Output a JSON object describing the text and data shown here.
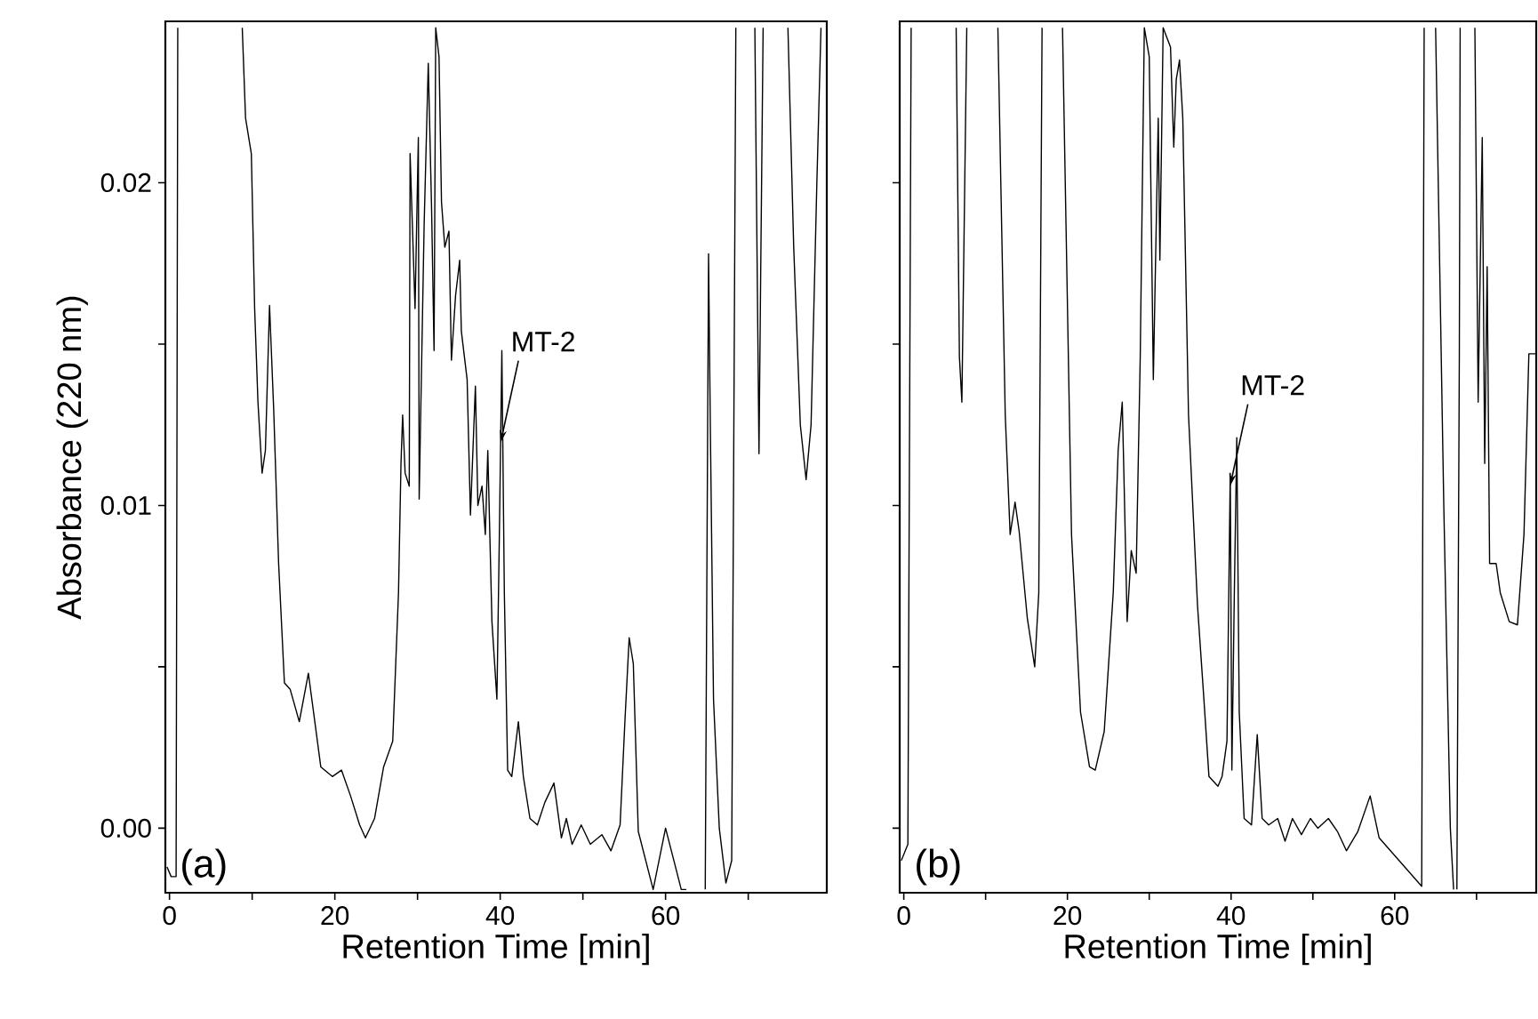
{
  "chart_data": [
    {
      "type": "line",
      "xlabel": "Retention Time [min]",
      "ylabel": "Absorbance (220 nm)",
      "xlim": [
        -0.5,
        79.5
      ],
      "ylim": [
        -0.002,
        0.025
      ],
      "xticks": [
        0,
        {
          "value": 10,
          "label": null
        },
        20,
        {
          "value": 30,
          "label": null
        },
        40,
        {
          "value": 50,
          "label": null
        },
        60,
        {
          "value": 70,
          "label": null
        }
      ],
      "yticks": [
        {
          "value": 0,
          "label": "0.00"
        },
        {
          "value": 0.005,
          "label": null
        },
        {
          "value": 0.01,
          "label": "0.01"
        },
        {
          "value": 0.015,
          "label": null
        },
        {
          "value": 0.02,
          "label": "0.02"
        }
      ],
      "marker": "none",
      "line_style": "solid",
      "annotations": [
        {
          "text": "MT-2",
          "x": 40.05,
          "y": 0.01195
        },
        "(a)"
      ],
      "series": [
        {
          "color": "#000000",
          "x": [
            -0.3,
            0.2,
            0.8,
            1.0,
            4.9,
            8.8,
            9.2,
            9.9,
            10.3,
            10.7,
            11.2,
            11.6,
            12.1,
            12.6,
            13.2,
            13.9,
            14.6,
            15.7,
            16.8,
            18.3,
            19.7,
            20.8,
            21.9,
            23.0,
            23.7,
            24.8,
            25.9,
            27.0,
            27.7,
            28.0,
            28.2,
            28.5,
            29.0,
            29.1,
            29.7,
            30.1,
            30.2,
            30.8,
            31.3,
            31.7,
            32.0,
            32.2,
            32.6,
            32.9,
            33.3,
            33.8,
            34.1,
            34.6,
            35.1,
            35.3,
            36.0,
            36.4,
            37.0,
            37.3,
            37.8,
            38.2,
            38.5,
            39.0,
            39.6,
            39.9,
            40.2,
            40.5,
            40.9,
            41.4,
            42.2,
            42.8,
            43.6,
            44.5,
            45.4,
            46.5,
            47.4,
            48.0,
            48.7,
            49.8,
            50.9,
            52.3,
            53.4,
            54.5,
            55.1,
            55.6,
            56.1,
            56.7,
            58.5,
            60.0,
            61.9,
            62.5,
            63.6,
            64.8,
            65.2,
            65.4,
            65.8,
            66.5,
            67.3,
            68.0,
            68.5,
            69.6,
            70.8,
            71.3,
            71.5,
            71.8,
            73.3,
            74.8,
            75.5,
            76.3,
            77.0,
            77.6,
            78.3,
            78.8
          ],
          "values": [
            -0.0012,
            -0.0015,
            -0.0015,
            0.0248,
            null,
            0.0248,
            0.022,
            0.0209,
            0.0161,
            0.0132,
            0.011,
            0.0117,
            0.0162,
            0.013,
            0.0082,
            0.0045,
            0.0043,
            0.0033,
            0.0048,
            0.0019,
            0.0016,
            0.0018,
            0.001,
            0.0001,
            -0.0003,
            0.0003,
            0.0019,
            0.0027,
            0.0073,
            0.0113,
            0.0128,
            0.011,
            0.0106,
            0.0209,
            0.0161,
            0.0214,
            0.0102,
            0.0187,
            0.0237,
            0.0192,
            0.0148,
            0.0248,
            0.0239,
            0.0194,
            0.018,
            0.0185,
            0.0145,
            0.0165,
            0.0176,
            0.0154,
            0.0139,
            0.0097,
            0.0137,
            0.01,
            0.0106,
            0.0091,
            0.0117,
            0.0064,
            0.004,
            0.0091,
            0.0148,
            0.0073,
            0.0018,
            0.0016,
            0.0033,
            0.0016,
            0.0003,
            0.0001,
            0.0008,
            0.0014,
            -0.0003,
            0.0003,
            -0.0005,
            0.0001,
            -0.0005,
            -0.0002,
            -0.0007,
            0.0001,
            0.0034,
            0.0059,
            0.0051,
            -0.0001,
            -0.0019,
            0.0,
            -0.0019,
            -0.0019,
            null,
            -0.0019,
            0.0178,
            0.0128,
            0.004,
            0.0,
            -0.0017,
            -0.001,
            0.0248,
            null,
            0.0248,
            0.0116,
            0.017,
            0.0248,
            null,
            0.0248,
            0.018,
            0.0125,
            0.0108,
            0.0125,
            0.02,
            0.0248
          ]
        }
      ]
    },
    {
      "type": "line",
      "xlabel": "Retention Time [min]",
      "xlim": [
        -0.5,
        77.3
      ],
      "ylim": [
        -0.002,
        0.025
      ],
      "xticks": [
        0,
        {
          "value": 10,
          "label": null
        },
        20,
        {
          "value": 30,
          "label": null
        },
        40,
        {
          "value": 50,
          "label": null
        },
        60,
        {
          "value": 70,
          "label": null
        }
      ],
      "yticks": [
        {
          "value": 0,
          "label": null
        },
        {
          "value": 0.005,
          "label": null
        },
        {
          "value": 0.01,
          "label": null
        },
        {
          "value": 0.015,
          "label": null
        },
        {
          "value": 0.02,
          "label": null
        }
      ],
      "tick_labels": "x",
      "marker": "none",
      "line_style": "solid",
      "annotations": [
        {
          "text": "MT-2",
          "x": 39.88,
          "y": 0.0106
        },
        "(b)"
      ],
      "series": [
        {
          "color": "#000000",
          "x": [
            -0.3,
            0.5,
            0.9,
            3.6,
            6.4,
            6.8,
            7.1,
            7.7,
            9.6,
            11.5,
            12.4,
            13.0,
            13.6,
            14.1,
            15.1,
            16.0,
            16.5,
            16.9,
            18.1,
            19.4,
            20.5,
            21.6,
            22.7,
            23.4,
            24.5,
            25.6,
            26.2,
            26.7,
            26.9,
            27.3,
            27.8,
            28.4,
            28.9,
            29.4,
            30.0,
            30.5,
            31.1,
            31.3,
            31.7,
            32.6,
            33.0,
            33.3,
            33.7,
            34.1,
            34.8,
            35.9,
            36.6,
            37.3,
            38.4,
            38.9,
            39.5,
            39.9,
            40.1,
            40.4,
            40.7,
            41.0,
            41.6,
            42.5,
            43.2,
            43.8,
            44.6,
            45.7,
            46.6,
            47.5,
            48.6,
            49.7,
            50.6,
            51.9,
            53.0,
            54.1,
            55.5,
            57.0,
            58.1,
            63.3,
            63.6,
            64.3,
            65.0,
            66.0,
            66.8,
            67.2,
            67.4,
            67.6,
            67.9,
            68.0,
            68.9,
            69.8,
            70.2,
            70.7,
            71.0,
            71.3,
            71.6,
            72.4,
            72.9,
            74.0,
            75.0,
            75.8,
            76.4,
            76.6,
            77.3
          ],
          "values": [
            -0.001,
            -0.0005,
            0.0248,
            null,
            0.0248,
            0.0146,
            0.0132,
            0.0248,
            null,
            0.0248,
            0.0128,
            0.0091,
            0.0101,
            0.0092,
            0.0065,
            0.005,
            0.0073,
            0.0248,
            null,
            0.0248,
            0.0091,
            0.0036,
            0.0019,
            0.0018,
            0.003,
            0.0073,
            0.0117,
            0.0132,
            0.011,
            0.0064,
            0.0086,
            0.0079,
            0.0146,
            0.0248,
            0.0239,
            0.0139,
            0.022,
            0.0176,
            0.0248,
            0.0242,
            0.0211,
            0.0232,
            0.0238,
            0.022,
            0.0128,
            0.0069,
            0.0043,
            0.0016,
            0.0013,
            0.0016,
            0.0027,
            0.011,
            0.0018,
            0.0073,
            0.0121,
            0.0036,
            0.0003,
            0.0001,
            0.0029,
            0.0003,
            0.0001,
            0.0003,
            -0.0004,
            0.0003,
            -0.0002,
            0.0003,
            0.0,
            0.0003,
            -0.0001,
            -0.0007,
            -0.0001,
            0.001,
            -0.0003,
            -0.0018,
            0.0248,
            null,
            0.0248,
            0.01,
            0.0,
            -0.0019,
            null,
            -0.0019,
            0.0147,
            0.0248,
            null,
            0.0248,
            0.0132,
            0.0214,
            0.0113,
            0.0174,
            0.0082,
            0.0082,
            0.0073,
            0.0064,
            0.0063,
            0.0091,
            0.0147,
            0.0147,
            0.0147
          ]
        }
      ]
    }
  ]
}
